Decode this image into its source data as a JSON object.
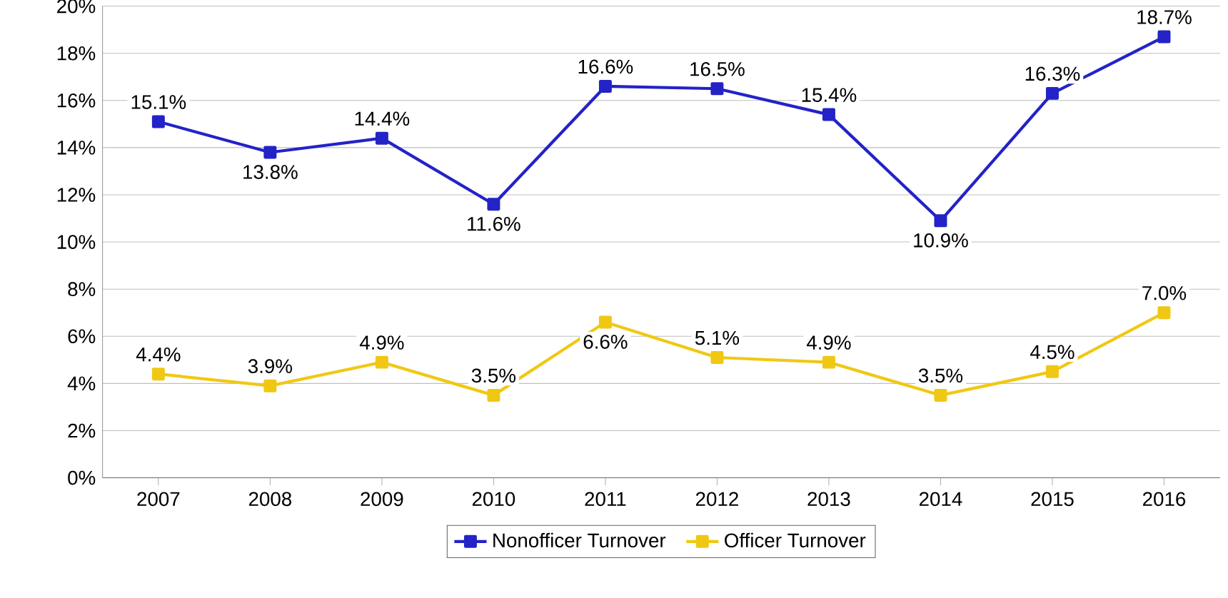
{
  "chart_data": {
    "type": "line",
    "categories": [
      "2007",
      "2008",
      "2009",
      "2010",
      "2011",
      "2012",
      "2013",
      "2014",
      "2015",
      "2016"
    ],
    "series": [
      {
        "name": "Nonofficer Turnover",
        "color": "#2323c8",
        "values": [
          15.1,
          13.8,
          14.4,
          11.6,
          16.6,
          16.5,
          15.4,
          10.9,
          16.3,
          18.7
        ],
        "value_labels": [
          "15.1%",
          "13.8%",
          "14.4%",
          "11.6%",
          "16.6%",
          "16.5%",
          "15.4%",
          "10.9%",
          "16.3%",
          "18.7%"
        ]
      },
      {
        "name": "Officer Turnover",
        "color": "#f0c814",
        "values": [
          4.4,
          3.9,
          4.9,
          3.5,
          6.6,
          5.1,
          4.9,
          3.5,
          4.5,
          7.0
        ],
        "value_labels": [
          "4.4%",
          "3.9%",
          "4.9%",
          "3.5%",
          "6.6%",
          "5.1%",
          "4.9%",
          "3.5%",
          "4.5%",
          "7.0%"
        ]
      }
    ],
    "ylim": [
      0,
      20
    ],
    "yticks": [
      {
        "value": 0,
        "label": "0%"
      },
      {
        "value": 2,
        "label": "2%"
      },
      {
        "value": 4,
        "label": "4%"
      },
      {
        "value": 6,
        "label": "6%"
      },
      {
        "value": 8,
        "label": "8%"
      },
      {
        "value": 10,
        "label": "10%"
      },
      {
        "value": 12,
        "label": "12%"
      },
      {
        "value": 14,
        "label": "14%"
      },
      {
        "value": 16,
        "label": "16%"
      },
      {
        "value": 18,
        "label": "18%"
      },
      {
        "value": 20,
        "label": "20%"
      }
    ],
    "grid": "y",
    "legend": "bottom",
    "marker": "square",
    "line_style": "solid"
  }
}
